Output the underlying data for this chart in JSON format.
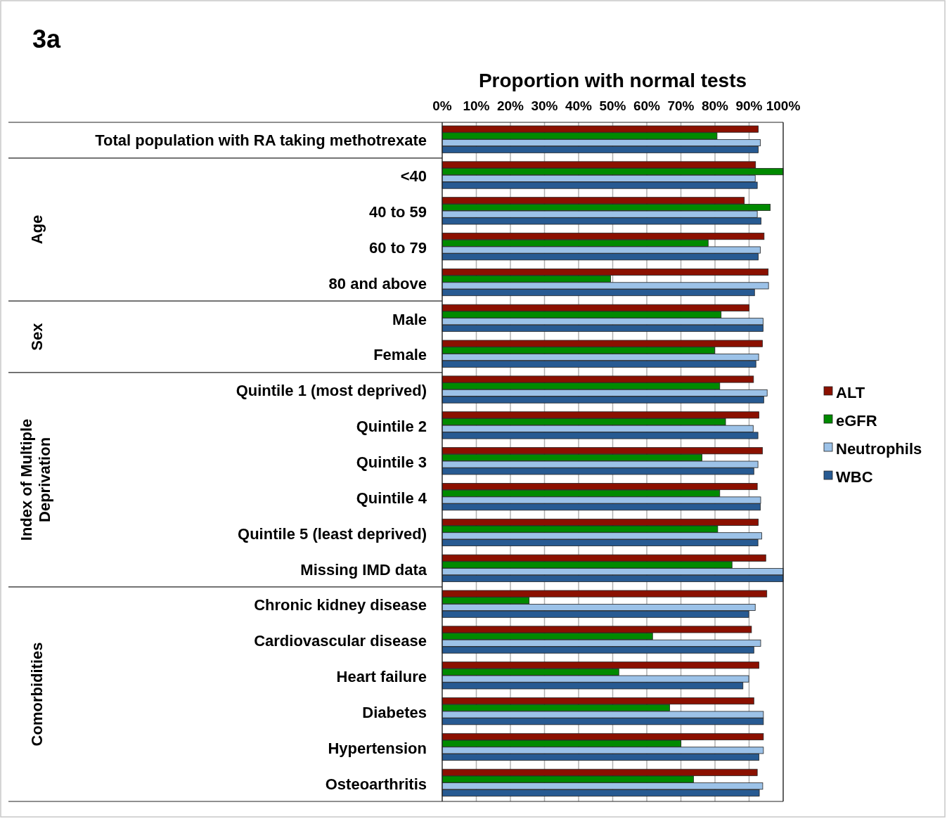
{
  "chart_data": {
    "type": "bar",
    "orientation": "horizontal",
    "title": "3a",
    "xlabel": "Proportion with normal tests",
    "categories": [
      "Total population with RA taking methotrexate",
      "<40",
      "40 to 59",
      "60 to 79",
      "80 and above",
      "Male",
      "Female",
      "Quintile 1 (most deprived)",
      "Quintile 2",
      "Quintile 3",
      "Quintile 4",
      "Quintile 5 (least deprived)",
      "Missing IMD data",
      "Chronic kidney disease",
      "Cardiovascular disease",
      "Heart failure",
      "Diabetes",
      "Hypertension",
      "Osteoarthritis"
    ],
    "series": [
      {
        "name": "ALT",
        "color": "#8b1000",
        "values": [
          92.7,
          91.9,
          88.6,
          94.4,
          95.6,
          90,
          93.9,
          91.3,
          92.9,
          93.9,
          92.4,
          92.7,
          94.9,
          95.2,
          90.7,
          92.9,
          91.4,
          94.2,
          92.4
        ]
      },
      {
        "name": "eGFR",
        "color": "#008a00",
        "values": [
          80.6,
          100,
          96.2,
          78,
          49.4,
          81.8,
          79.9,
          81.4,
          83.1,
          76.2,
          81.4,
          80.8,
          85,
          25.5,
          61.7,
          51.8,
          66.7,
          70,
          73.7
        ]
      },
      {
        "name": "Neutrophils",
        "color": "#9cc2e8",
        "values": [
          93.3,
          91.8,
          92.4,
          93.3,
          95.7,
          94.1,
          92.8,
          95.3,
          91.2,
          92.6,
          93.4,
          93.7,
          100,
          91.8,
          93.4,
          89.9,
          94.2,
          94.2,
          94
        ]
      },
      {
        "name": "WBC",
        "color": "#275a92",
        "values": [
          92.7,
          92.4,
          93.5,
          92.7,
          91.6,
          94.1,
          92,
          94.3,
          92.6,
          91.4,
          93.3,
          92.6,
          100,
          89.9,
          91.4,
          88.2,
          94.2,
          92.9,
          93
        ]
      }
    ],
    "annotations": [
      "Age",
      "Sex",
      "Index of Multiple Deprivation",
      "Comorbidities"
    ],
    "xlim": [
      0,
      100
    ],
    "xticks": [
      {
        "value": 0,
        "label": "0%"
      },
      {
        "value": 10,
        "label": "10%"
      },
      {
        "value": 20,
        "label": "20%"
      },
      {
        "value": 30,
        "label": "30%"
      },
      {
        "value": 40,
        "label": "40%"
      },
      {
        "value": 50,
        "label": "50%"
      },
      {
        "value": 60,
        "label": "60%"
      },
      {
        "value": 70,
        "label": "70%"
      },
      {
        "value": 80,
        "label": "80%"
      },
      {
        "value": 90,
        "label": "90%"
      },
      {
        "value": 100,
        "label": "100%"
      }
    ],
    "grid": "x",
    "legend": "right"
  }
}
